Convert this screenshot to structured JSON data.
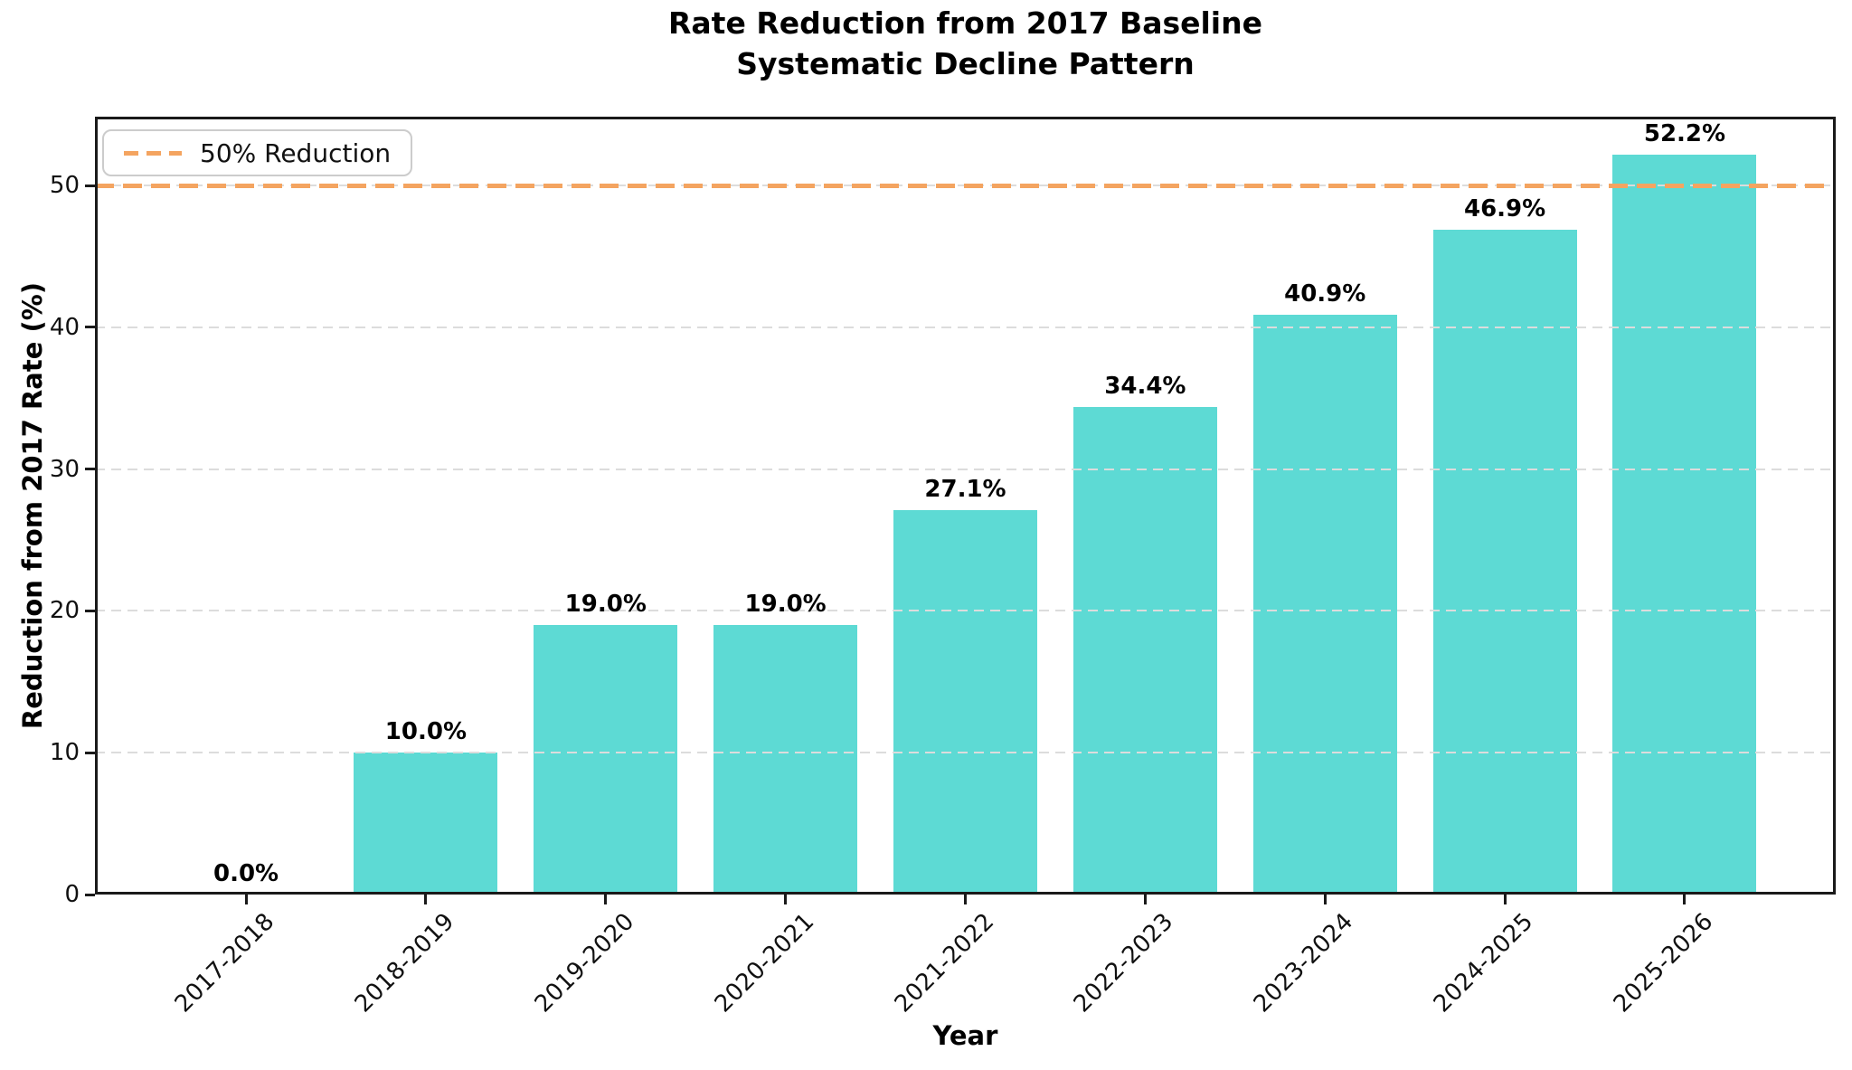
{
  "chart_data": {
    "type": "bar",
    "title_lines": [
      "Rate Reduction from 2017 Baseline",
      "Systematic Decline Pattern"
    ],
    "title": "Rate Reduction from 2017 Baseline\nSystematic Decline Pattern",
    "xlabel": "Year",
    "ylabel": "Reduction from 2017 Rate (%)",
    "categories": [
      "2017-2018",
      "2018-2019",
      "2019-2020",
      "2020-2021",
      "2021-2022",
      "2022-2023",
      "2023-2024",
      "2024-2025",
      "2025-2026"
    ],
    "values": [
      0.0,
      10.0,
      19.0,
      19.0,
      27.1,
      34.4,
      40.9,
      46.9,
      52.2
    ],
    "bar_value_labels": [
      "0.0%",
      "10.0%",
      "19.0%",
      "19.0%",
      "27.1%",
      "34.4%",
      "40.9%",
      "46.9%",
      "52.2%"
    ],
    "yticks": [
      0,
      10,
      20,
      30,
      40,
      50
    ],
    "ylim": [
      0,
      54.85
    ],
    "grid": {
      "axis": "y",
      "style": "dashed",
      "color": "#DCDCDC",
      "drawn_over_bars": true
    },
    "bar_color": "#5DDAD4",
    "reference_line": {
      "value": 50,
      "style": "dashed",
      "color": "#F4A460",
      "label": "50% Reduction"
    },
    "legend": {
      "position": "upper-left",
      "entries": [
        {
          "label": "50% Reduction",
          "swatch": "dashed-line",
          "color": "#F4A460"
        }
      ]
    }
  }
}
